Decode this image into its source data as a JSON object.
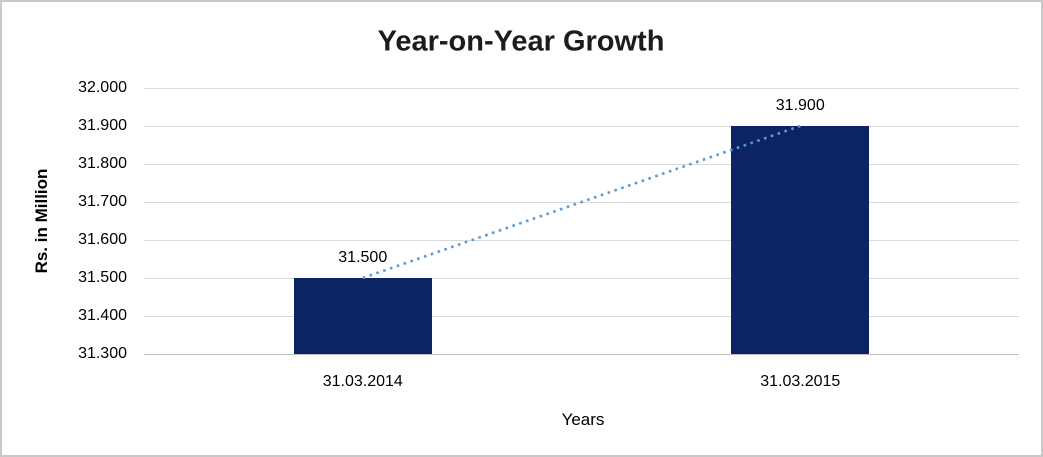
{
  "chart_data": {
    "type": "bar",
    "title": "Year-on-Year Growth",
    "xlabel": "Years",
    "ylabel": "Rs. in Million",
    "categories": [
      "31.03.2014",
      "31.03.2015"
    ],
    "values": [
      31.5,
      31.9
    ],
    "data_labels": [
      "31.500",
      "31.900"
    ],
    "ylim": [
      31.3,
      32.0
    ],
    "ytick_step": 0.1,
    "ytick_labels": [
      "31.300",
      "31.400",
      "31.500",
      "31.600",
      "31.700",
      "31.800",
      "31.900",
      "32.000"
    ],
    "grid": true,
    "legend": false,
    "bar_color": "#0c2461",
    "gridline_color": "#d9d9d9",
    "axis_line_color": "#bfbfbf",
    "trendline": {
      "style": "dotted",
      "color": "#5b9bd5",
      "from": {
        "category": "31.03.2014",
        "value": 31.5
      },
      "to": {
        "category": "31.03.2015",
        "value": 31.9
      }
    }
  }
}
